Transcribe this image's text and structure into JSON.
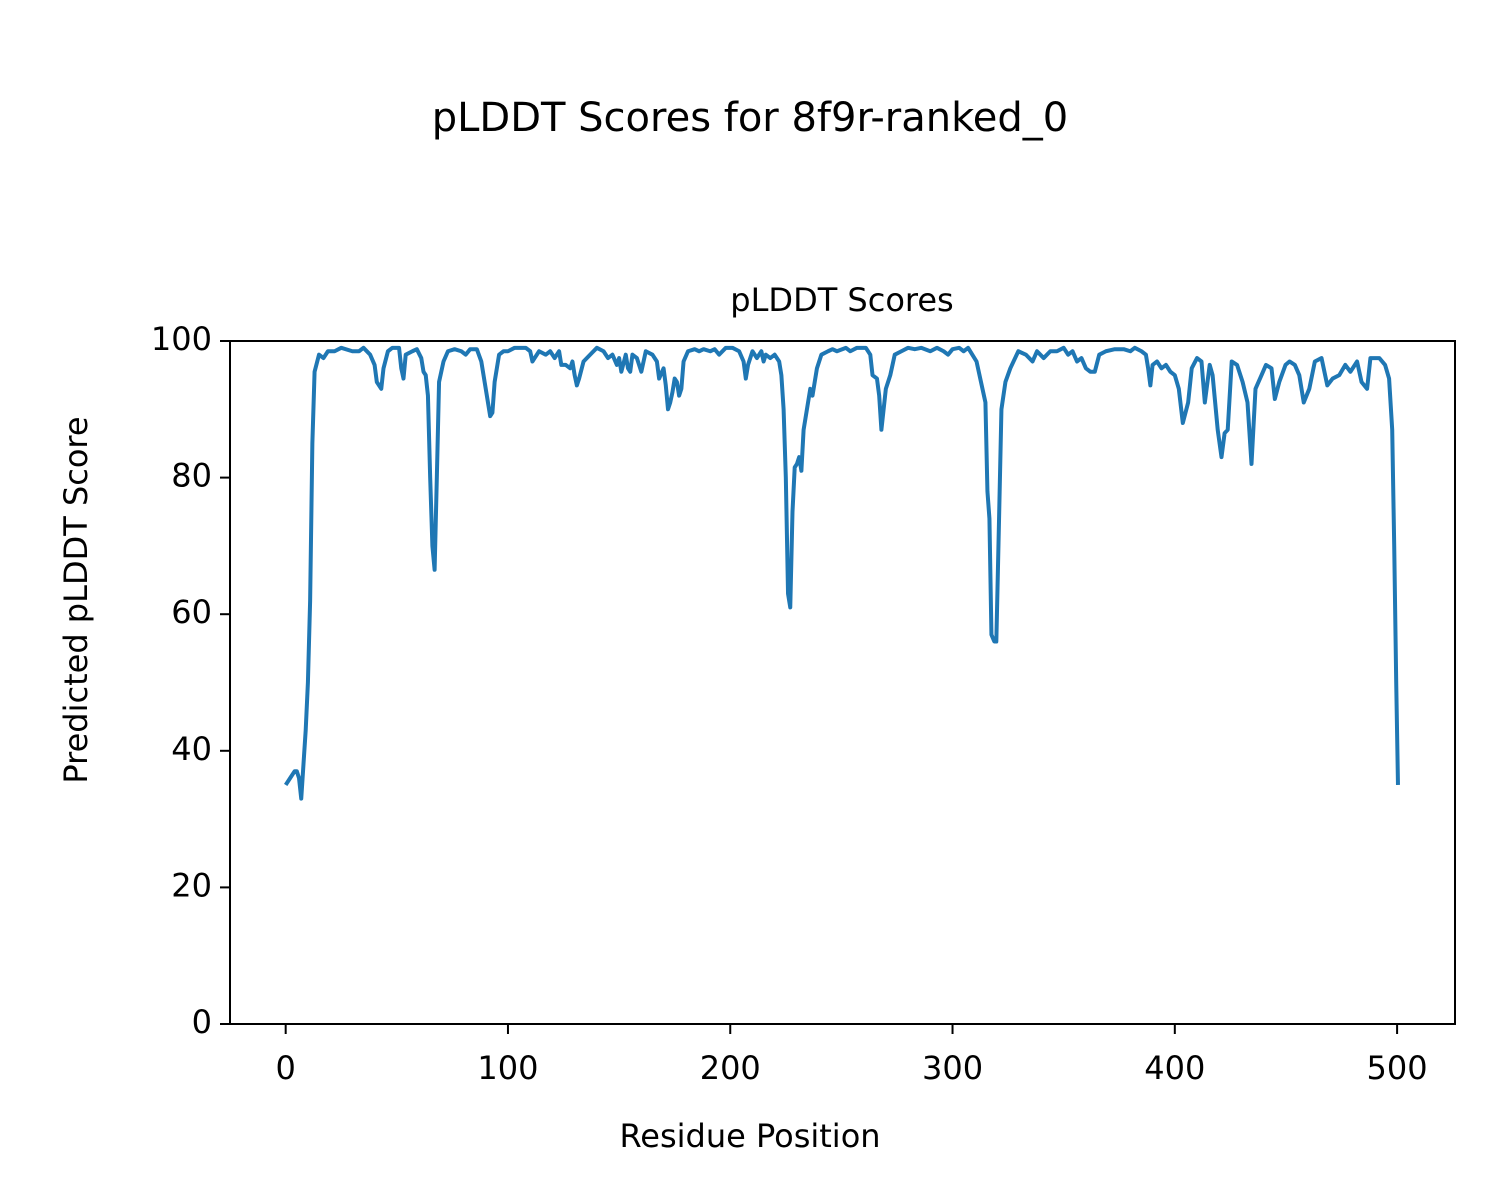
{
  "chart_data": {
    "type": "line",
    "title": "pLDDT Scores for 8f9r-ranked_0",
    "subtitle": "pLDDT Scores",
    "x_label": "Residue Position",
    "y_label": "Predicted pLDDT Score",
    "color": "#1f77b4",
    "grid": false,
    "xlim": [
      -25.05,
      526.05
    ],
    "ylim": [
      0,
      100
    ],
    "xticks": [
      0,
      100,
      200,
      300,
      400,
      500
    ],
    "yticks": [
      0,
      20,
      40,
      60,
      80,
      100
    ],
    "x": [
      0,
      2,
      4,
      5,
      6,
      7,
      8,
      9,
      10,
      11,
      12,
      13,
      15,
      17,
      19,
      22,
      25,
      30,
      33,
      35,
      38,
      40,
      41,
      43,
      44,
      46,
      48,
      51,
      52,
      53,
      54,
      57,
      59,
      61,
      62,
      63,
      64,
      65,
      66,
      67,
      68,
      69,
      71,
      73,
      76,
      79,
      81,
      83,
      86,
      88,
      90,
      92,
      93,
      94,
      96,
      98,
      100,
      103,
      108,
      110,
      111,
      112,
      114,
      117,
      119,
      121,
      123,
      124,
      126,
      128,
      129,
      130,
      131,
      132,
      134,
      137,
      140,
      143,
      145,
      147,
      149,
      150,
      151,
      153,
      154,
      155,
      156,
      158,
      160,
      162,
      165,
      167,
      168,
      170,
      171,
      172,
      173,
      174,
      175,
      176,
      177,
      178,
      179,
      181,
      184,
      186,
      188,
      191,
      193,
      195,
      198,
      201,
      204,
      206,
      207,
      208,
      210,
      212,
      214,
      215,
      216,
      218,
      220,
      222,
      223,
      224,
      225,
      226,
      227,
      228,
      229,
      230,
      231,
      232,
      233,
      235,
      236,
      237,
      239,
      241,
      244,
      246,
      248,
      252,
      254,
      257,
      261,
      263,
      264,
      266,
      267,
      268,
      269,
      270,
      272,
      274,
      277,
      280,
      283,
      286,
      290,
      293,
      296,
      298,
      300,
      303,
      305,
      307,
      310.8,
      314.8,
      315.7,
      316.6,
      317.5,
      318.8,
      319.7,
      321,
      322,
      323.8,
      326,
      329.6,
      333,
      336,
      338,
      341,
      344,
      347,
      350,
      352,
      354,
      356,
      358,
      360,
      362,
      364,
      366,
      369,
      373,
      377,
      380,
      382,
      385,
      387,
      388,
      389,
      390,
      392,
      394,
      396,
      398,
      400,
      401.8,
      403.6,
      406,
      407.6,
      410,
      412,
      413.5,
      415.7,
      417,
      419.3,
      421,
      422.4,
      423.8,
      425.6,
      428,
      430.5,
      432.7,
      434.5,
      436.3,
      439,
      441,
      443.5,
      445,
      447,
      449.8,
      451.6,
      454,
      456,
      458,
      460.5,
      463,
      466,
      468.6,
      471,
      474,
      476.7,
      479,
      482,
      484,
      486.5,
      488,
      492,
      494.6,
      496.4,
      497.8,
      498.7,
      499.6,
      500.4
    ],
    "values": [
      35,
      36,
      37,
      37,
      36,
      33,
      38,
      43,
      50,
      62,
      85,
      95.5,
      98,
      97.5,
      98.5,
      98.5,
      99,
      98.5,
      98.5,
      99,
      98,
      96.5,
      94,
      93,
      96,
      98.5,
      99,
      99,
      96,
      94.5,
      98,
      98.5,
      98.8,
      97.5,
      95.5,
      95,
      92,
      80,
      70,
      66.5,
      80,
      94,
      97,
      98.5,
      98.8,
      98.5,
      98,
      98.8,
      98.8,
      97,
      93,
      89,
      89.5,
      94,
      98,
      98.5,
      98.5,
      99,
      99,
      98.5,
      97,
      97.5,
      98.5,
      98,
      98.5,
      97.5,
      98.5,
      96.5,
      96.5,
      96,
      97,
      95,
      93.5,
      94.5,
      97,
      98,
      99,
      98.5,
      97.5,
      98,
      96.5,
      97.5,
      95.5,
      98,
      96,
      95.5,
      98,
      97.5,
      95.5,
      98.5,
      98,
      97,
      94.5,
      96,
      93.5,
      90,
      91,
      92.5,
      94.5,
      94,
      92,
      93,
      97,
      98.5,
      98.8,
      98.5,
      98.8,
      98.5,
      98.8,
      98,
      99,
      99,
      98.5,
      97,
      94.5,
      96.5,
      98.5,
      97.5,
      98.5,
      97,
      98,
      97.5,
      98,
      97,
      95,
      90,
      80,
      63,
      61,
      75,
      81.5,
      82,
      83,
      81,
      87,
      91,
      93,
      92,
      96,
      98,
      98.5,
      98.8,
      98.5,
      99,
      98.5,
      99,
      99,
      98,
      95,
      94.5,
      92,
      87,
      90,
      93,
      95,
      98,
      98.5,
      99,
      98.8,
      99,
      98.5,
      99,
      98.5,
      98,
      98.8,
      99,
      98.5,
      99,
      97,
      91,
      78,
      74,
      57,
      56,
      56,
      75,
      90,
      94,
      96,
      98.5,
      98,
      97,
      98.5,
      97.5,
      98.5,
      98.5,
      99,
      98,
      98.5,
      97,
      97.5,
      96,
      95.5,
      95.5,
      98,
      98.5,
      98.8,
      98.8,
      98.5,
      99,
      98.5,
      98,
      96,
      93.5,
      96.5,
      97,
      96,
      96.5,
      95.5,
      95,
      93,
      88,
      91,
      96,
      97.5,
      97,
      91,
      96.5,
      95,
      87,
      83,
      86.5,
      87,
      97,
      96.5,
      94,
      91,
      82,
      93,
      95,
      96.5,
      96,
      91.5,
      94,
      96.5,
      97,
      96.5,
      95,
      91,
      93,
      97,
      97.5,
      93.5,
      94.5,
      95,
      96.5,
      95.5,
      97,
      94,
      93,
      97.5,
      97.5,
      96.5,
      94.5,
      87,
      70,
      50,
      35
    ]
  }
}
